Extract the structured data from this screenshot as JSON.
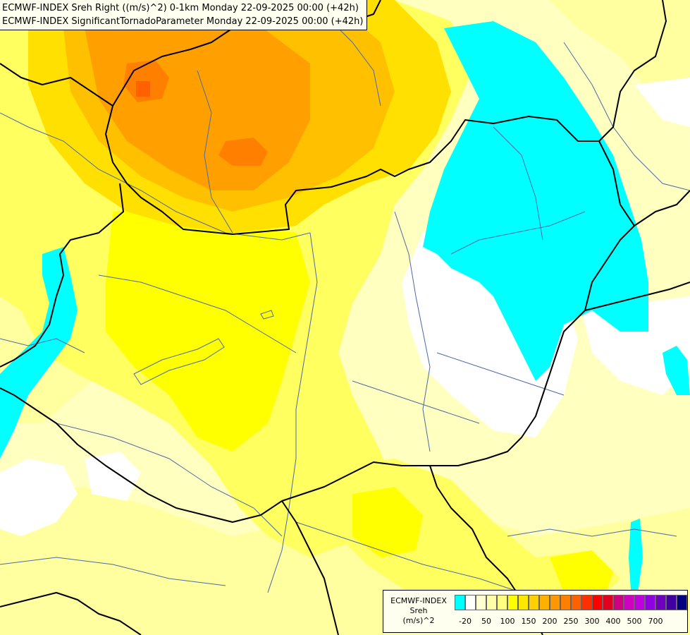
{
  "title": {
    "line1": "ECMWF-INDEX Sreh Right ((m/s)^2) 0-1km Monday 22-09-2025 00:00 (+42h)",
    "line2": "ECMWF-INDEX SignificantTornadoParameter Monday 22-09-2025 00:00 (+42h)"
  },
  "legend": {
    "model": "ECMWF-INDEX",
    "param": "Sreh",
    "unit": "(m/s)^2",
    "ticks": [
      "-20",
      "50",
      "100",
      "150",
      "200",
      "250",
      "300",
      "400",
      "500",
      "700"
    ],
    "colors": [
      "#00ffff",
      "#ffffff",
      "#ffffd0",
      "#ffffa8",
      "#ffff80",
      "#ffff00",
      "#ffe800",
      "#ffd000",
      "#ffb000",
      "#ff9800",
      "#ff8000",
      "#ff6000",
      "#ff3000",
      "#ff0000",
      "#e00020",
      "#d00080",
      "#d000c0",
      "#c000e0",
      "#9000e0",
      "#7000c0",
      "#4000a0",
      "#000080"
    ]
  },
  "fields": {
    "cyan": "#00ffff",
    "white": "#ffffff",
    "pale_yellow": "#ffffc0",
    "light_yellow": "#ffffa0",
    "yellow": "#ffff60",
    "bright_yellow": "#ffff00",
    "gold": "#ffe000",
    "amber": "#ffc000",
    "orange": "#ffa000",
    "dark_orange": "#ff8000"
  },
  "lines": {
    "border_color": "#000000",
    "river_color": "#4a6aa8"
  }
}
